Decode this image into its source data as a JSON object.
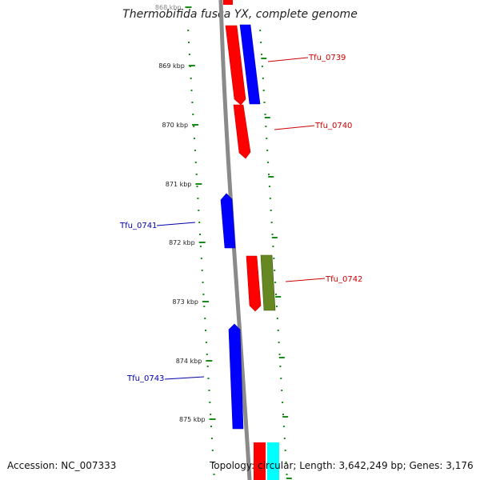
{
  "title": "Thermobifida fusca YX, complete genome",
  "footer": {
    "accession": "Accession: NC_007333",
    "summary": "Topology: circular; Length: 3,642,249 bp; Genes: 3,176"
  },
  "colors": {
    "backbone": "#8a8a8a",
    "ticks": "#1a8a1a",
    "forward_label": "#cc0000",
    "reverse_label": "#0000aa",
    "red_gene": "#ff0000",
    "blue_gene": "#0000ff",
    "olive_gene": "#668822",
    "cyan_gene": "#00ffff"
  },
  "ruler": {
    "unit": "kbp",
    "tick_labels": [
      "868 kbp",
      "869 kbp",
      "870 kbp",
      "871 kbp",
      "872 kbp",
      "873 kbp",
      "874 kbp",
      "875 kbp"
    ]
  },
  "genes": [
    {
      "label": "Tfu_0739",
      "strand": "+",
      "color": "red"
    },
    {
      "label": "Tfu_0740",
      "strand": "+",
      "color": "red"
    },
    {
      "label": "Tfu_0741",
      "strand": "-",
      "color": "blue"
    },
    {
      "label": "Tfu_0742",
      "strand": "+",
      "color": "red"
    },
    {
      "label": "Tfu_0743",
      "strand": "-",
      "color": "blue"
    }
  ]
}
